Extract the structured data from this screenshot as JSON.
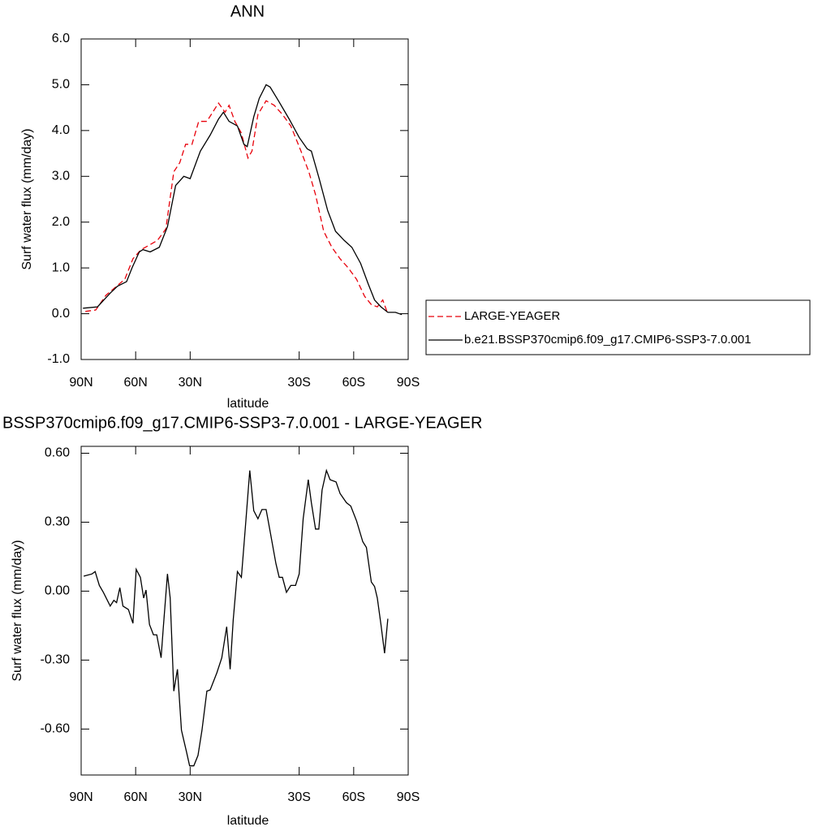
{
  "chart_data": [
    {
      "type": "line",
      "title": "ANN",
      "xlabel": "latitude",
      "ylabel": "Surf water flux (mm/day)",
      "xlim": [
        90,
        -90
      ],
      "ylim": [
        -1,
        6
      ],
      "xticks": [
        {
          "value": 90,
          "label": "90N"
        },
        {
          "value": 60,
          "label": "60N"
        },
        {
          "value": 30,
          "label": "30N"
        },
        {
          "value": -30,
          "label": "30S"
        },
        {
          "value": -60,
          "label": "60S"
        },
        {
          "value": -90,
          "label": "90S"
        }
      ],
      "yticks": [
        {
          "value": -1,
          "label": "-1.0"
        },
        {
          "value": 0,
          "label": "0.0"
        },
        {
          "value": 1,
          "label": "1.0"
        },
        {
          "value": 2,
          "label": "2.0"
        },
        {
          "value": 3,
          "label": "3.0"
        },
        {
          "value": 4,
          "label": "4.0"
        },
        {
          "value": 5,
          "label": "5.0"
        },
        {
          "value": 6,
          "label": "6.0"
        }
      ],
      "series": [
        {
          "name": "LARGE-YEAGER",
          "color": "#e8000b",
          "dash": true,
          "x": [
            87.7,
            82,
            76.4,
            70.5,
            66,
            61.5,
            57,
            52.4,
            48,
            43.4,
            39,
            35.7,
            32.5,
            29,
            25.3,
            20.8,
            17.6,
            14.4,
            10.8,
            8.6,
            5.4,
            1.9,
            -1.8,
            -4,
            -7.3,
            -11.8,
            -16.3,
            -20.8,
            -25.4,
            -31,
            -35.3,
            -39,
            -43.5,
            -48,
            -52.5,
            -57,
            -61.6,
            -66,
            -69.7,
            -73,
            -76,
            -78.3
          ],
          "values": [
            0.05,
            0.08,
            0.4,
            0.6,
            0.75,
            1.2,
            1.4,
            1.5,
            1.6,
            1.85,
            3.1,
            3.3,
            3.7,
            3.7,
            4.2,
            4.2,
            4.4,
            4.6,
            4.4,
            4.55,
            4.2,
            3.95,
            3.4,
            3.55,
            4.35,
            4.65,
            4.55,
            4.35,
            4.1,
            3.55,
            3.1,
            2.6,
            1.8,
            1.45,
            1.2,
            1.0,
            0.75,
            0.38,
            0.2,
            0.15,
            0.3,
            0.05
          ]
        },
        {
          "name": "b.e21.BSSP370cmip6.f09_g17.CMIP6-SSP3-7.0.001",
          "color": "#000000",
          "dash": false,
          "x": [
            89,
            81,
            74,
            70,
            65,
            62,
            58,
            56,
            52,
            47,
            42.5,
            38,
            33.5,
            30,
            24.4,
            19,
            14.4,
            11.7,
            8.6,
            4,
            0.4,
            -1.4,
            -5,
            -8,
            -11.8,
            -14,
            -18.6,
            -24.5,
            -30,
            -34.4,
            -36.7,
            -41,
            -45.7,
            -50,
            -54.8,
            -59,
            -63.8,
            -68,
            -71.5,
            -75,
            -78.8,
            -83,
            -86.5
          ],
          "values": [
            0.12,
            0.15,
            0.45,
            0.6,
            0.7,
            1.0,
            1.35,
            1.4,
            1.35,
            1.45,
            1.9,
            2.8,
            3.0,
            2.95,
            3.55,
            3.9,
            4.25,
            4.4,
            4.2,
            4.1,
            3.7,
            3.65,
            4.3,
            4.7,
            5.0,
            4.95,
            4.65,
            4.25,
            3.85,
            3.6,
            3.55,
            2.95,
            2.25,
            1.8,
            1.6,
            1.45,
            1.1,
            0.65,
            0.3,
            0.15,
            0.03,
            0.03,
            -0.02
          ]
        }
      ]
    },
    {
      "type": "line",
      "title": "BSSP370cmip6.f09_g17.CMIP6-SSP3-7.0.001 - LARGE-YEAGER",
      "xlabel": "latitude",
      "ylabel": "Surf water flux (mm/day)",
      "xlim": [
        90,
        -90
      ],
      "ylim": [
        -0.8,
        0.63
      ],
      "xticks": [
        {
          "value": 90,
          "label": "90N"
        },
        {
          "value": 60,
          "label": "60N"
        },
        {
          "value": 30,
          "label": "30N"
        },
        {
          "value": -30,
          "label": "30S"
        },
        {
          "value": -60,
          "label": "60S"
        },
        {
          "value": -90,
          "label": "90S"
        }
      ],
      "yticks": [
        {
          "value": -0.6,
          "label": "-0.60"
        },
        {
          "value": -0.3,
          "label": "-0.30"
        },
        {
          "value": 0,
          "label": "0.00"
        },
        {
          "value": 0.3,
          "label": "0.30"
        },
        {
          "value": 0.6,
          "label": "0.60"
        }
      ],
      "series": [
        {
          "color": "#000000",
          "dash": false,
          "x": [
            88.6,
            84,
            82.3,
            80,
            77.8,
            74,
            72,
            70.5,
            68.7,
            67,
            64,
            61.5,
            59.7,
            57.4,
            55.6,
            54.3,
            52.4,
            50.2,
            48.4,
            46,
            44.8,
            42.5,
            41,
            39,
            37,
            34.8,
            32,
            30.3,
            28,
            25.7,
            23.5,
            20.8,
            19,
            15.3,
            12.6,
            9.9,
            8,
            6.3,
            4,
            1.8,
            -0.4,
            -2.8,
            -5,
            -7.3,
            -9.5,
            -11.8,
            -14,
            -17.2,
            -19,
            -20.8,
            -23,
            -25.4,
            -28,
            -30,
            -32.2,
            -35,
            -36.7,
            -39,
            -40.8,
            -42.6,
            -45,
            -47,
            -50.3,
            -52.5,
            -56,
            -58.4,
            -61.6,
            -65,
            -67,
            -69.7,
            -71.5,
            -73,
            -75,
            -77,
            -78.8
          ],
          "values": [
            0.065,
            0.075,
            0.085,
            0.025,
            -0.005,
            -0.065,
            -0.04,
            -0.05,
            0.015,
            -0.065,
            -0.08,
            -0.14,
            0.095,
            0.06,
            -0.03,
            0.005,
            -0.145,
            -0.19,
            -0.19,
            -0.29,
            -0.16,
            0.075,
            -0.03,
            -0.435,
            -0.34,
            -0.605,
            -0.7,
            -0.76,
            -0.76,
            -0.715,
            -0.605,
            -0.435,
            -0.43,
            -0.355,
            -0.29,
            -0.155,
            -0.34,
            -0.125,
            0.085,
            0.06,
            0.28,
            0.525,
            0.35,
            0.315,
            0.355,
            0.355,
            0.26,
            0.12,
            0.06,
            0.06,
            -0.005,
            0.025,
            0.025,
            0.075,
            0.315,
            0.485,
            0.385,
            0.27,
            0.27,
            0.44,
            0.525,
            0.485,
            0.475,
            0.425,
            0.385,
            0.37,
            0.305,
            0.215,
            0.19,
            0.04,
            0.02,
            -0.03,
            -0.145,
            -0.27,
            -0.12
          ]
        }
      ]
    }
  ]
}
